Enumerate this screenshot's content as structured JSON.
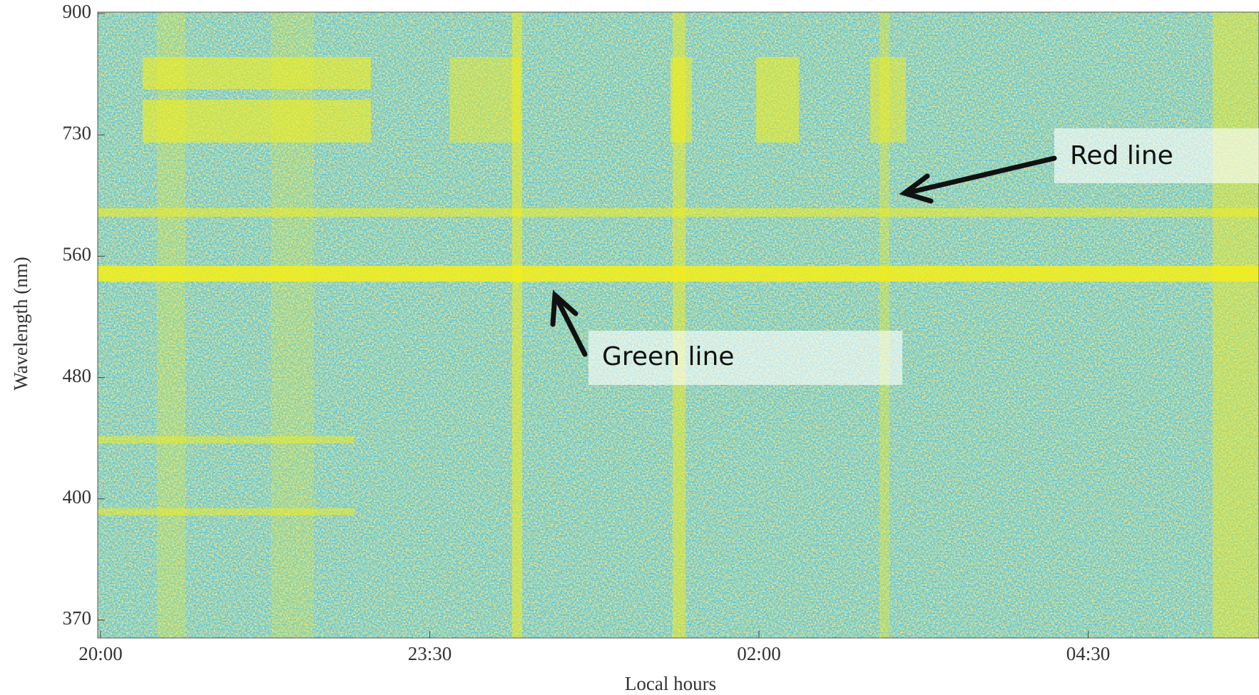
{
  "chart_data": {
    "type": "heatmap",
    "y_label": "Wavelength (nm)",
    "x_label": "Local hours",
    "y_categories": [
      900,
      730,
      560,
      480,
      400,
      370
    ],
    "x_categories": [
      "20:00",
      "23:30",
      "02:00",
      "04:30"
    ],
    "annotations": [
      "Red line",
      "Green line"
    ]
  }
}
